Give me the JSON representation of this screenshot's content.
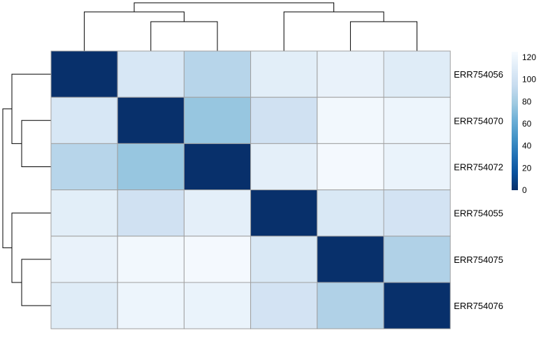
{
  "chart_data": {
    "type": "heatmap",
    "title": "",
    "xlabel": "",
    "ylabel": "",
    "rows": [
      "ERR754056",
      "ERR754070",
      "ERR754072",
      "ERR754055",
      "ERR754075",
      "ERR754076"
    ],
    "values": [
      [
        0,
        105,
        88,
        112,
        116,
        110
      ],
      [
        105,
        0,
        76,
        100,
        122,
        119
      ],
      [
        88,
        76,
        0,
        113,
        123,
        117
      ],
      [
        112,
        100,
        113,
        0,
        106,
        102
      ],
      [
        116,
        122,
        123,
        106,
        0,
        85
      ],
      [
        110,
        119,
        117,
        102,
        85,
        0
      ]
    ],
    "colorbar": {
      "min": 0,
      "max": 125,
      "ticks": [
        0,
        20,
        40,
        60,
        80,
        100,
        120
      ],
      "colors": [
        "#08306b",
        "#08519c",
        "#2171b5",
        "#4292c6",
        "#6baed6",
        "#9ecae1",
        "#c6dbef",
        "#deebf7",
        "#f7fbff"
      ]
    },
    "row_dendrogram": {
      "merges": [
        [
          2,
          3
        ],
        [
          1,
          "a"
        ],
        [
          5,
          6
        ],
        [
          4,
          "c"
        ],
        [
          "b",
          "d"
        ]
      ]
    },
    "col_dendrogram": {
      "merges": [
        [
          2,
          3
        ],
        [
          1,
          "a"
        ],
        [
          5,
          6
        ],
        [
          4,
          "c"
        ],
        [
          "b",
          "d"
        ]
      ]
    },
    "grid_color": "#a0a0a0"
  }
}
